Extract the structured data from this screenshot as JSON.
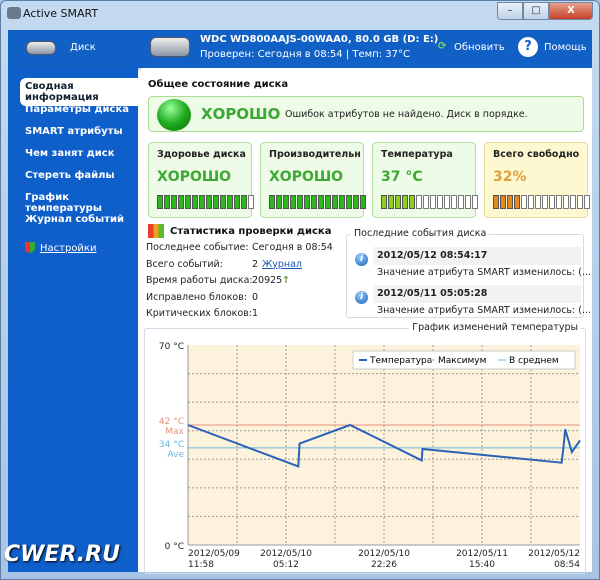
{
  "window": {
    "title": "Active SMART",
    "min": "–",
    "max": "□",
    "close": "X"
  },
  "header": {
    "disk_label": "Диск",
    "drive_name": "WDC WD800AAJS-00WAA0, 80.0 GB (D: E:)",
    "drive_status": "Проверен: Сегодня в 08:54 | Темп: 37°C",
    "refresh": "Обновить",
    "help": "Помощь",
    "help_glyph": "?"
  },
  "sidebar": {
    "items": [
      {
        "label": "Сводная информация",
        "active": true
      },
      {
        "label": "Параметры диска"
      },
      {
        "label": "SMART атрибуты"
      },
      {
        "label": "Чем занят диск"
      },
      {
        "label": "Стереть файлы"
      },
      {
        "label": "График температуры"
      },
      {
        "label": "Журнал событий"
      }
    ],
    "settings": "Настройки"
  },
  "main": {
    "title": "Общее состояние диска",
    "status": {
      "value": "ХОРОШО",
      "message": "Ошибок атрибутов не найдено. Диск в порядке."
    },
    "cards": [
      {
        "title": "Здоровье диска",
        "value": "ХОРОШО",
        "level": 0.93,
        "color": "#3aa832",
        "bar": "#2cb81c"
      },
      {
        "title": "Производительн",
        "value": "ХОРОШО",
        "level": 0.98,
        "color": "#3aa832",
        "bar": "#2cb81c"
      },
      {
        "title": "Температура",
        "value": "37 °C",
        "level": 0.37,
        "color": "#3aa832",
        "bar": "#8ccf1c"
      },
      {
        "title": "Всего свободно",
        "value": "32%",
        "level": 0.32,
        "color": "#e0a040",
        "bar": "#e08a20",
        "warn": true
      }
    ],
    "stats": {
      "title": "Статистика проверки диска",
      "rows": [
        {
          "label": "Последнее событие:",
          "value": "Сегодня в 08:54"
        },
        {
          "label": "Всего событий:",
          "value": "2",
          "link": "Журнал"
        },
        {
          "label": "Время работы диска:",
          "value": "20925",
          "arrow": "↑"
        },
        {
          "label": "Исправлено блоков:",
          "value": "0"
        },
        {
          "label": "Критических блоков:",
          "value": "1"
        }
      ]
    },
    "events": {
      "title": "Последние события диска",
      "icon_glyph": "i",
      "items": [
        {
          "time": "2012/05/12 08:54:17",
          "text": "Значение атрибута SMART изменилось: (..."
        },
        {
          "time": "2012/05/11 05:05:28",
          "text": "Значение атрибута SMART изменилось: (..."
        }
      ]
    }
  },
  "chart_data": {
    "type": "line",
    "title": "График изменений температуры",
    "ylim": [
      0,
      70
    ],
    "xlim": [
      "2012-05-09T11:58",
      "2012-05-12T08:54"
    ],
    "y_ticks": [
      {
        "label": "70 °C",
        "value": 70
      },
      {
        "label": "0 °C",
        "value": 0
      }
    ],
    "x_ticks": [
      {
        "l1": "2012/05/09",
        "l2": "11:58",
        "t": "2012-05-09T11:58"
      },
      {
        "l1": "2012/05/10",
        "l2": "05:12",
        "t": "2012-05-10T05:12"
      },
      {
        "l1": "2012/05/10",
        "l2": "22:26",
        "t": "2012-05-10T22:26"
      },
      {
        "l1": "2012/05/11",
        "l2": "15:40",
        "t": "2012-05-11T15:40"
      },
      {
        "l1": "2012/05/12",
        "l2": "08:54",
        "t": "2012-05-12T08:54"
      }
    ],
    "grid": true,
    "legend": "top-right",
    "max": {
      "value": 42,
      "label": "42 °C",
      "sub": "Max",
      "color": "#e8907a"
    },
    "avg": {
      "value": 34,
      "label": "34 °C",
      "sub": "Ave",
      "color": "#6ab8e0"
    },
    "series": [
      {
        "name": "Температура",
        "color": "#2a62b8",
        "points": [
          [
            "2012-05-09T11:58",
            42
          ],
          [
            "2012-05-10T07:22",
            27.5
          ],
          [
            "2012-05-10T07:35",
            35.5
          ],
          [
            "2012-05-10T16:28",
            42
          ],
          [
            "2012-05-11T05:04",
            29.6
          ],
          [
            "2012-05-11T05:12",
            33.6
          ],
          [
            "2012-05-12T05:40",
            28.8
          ],
          [
            "2012-05-12T05:58",
            33.7
          ],
          [
            "2012-05-12T06:18",
            40.5
          ],
          [
            "2012-05-12T07:28",
            32.5
          ],
          [
            "2012-05-12T08:54",
            36.6
          ]
        ]
      }
    ],
    "legend_entries": [
      "Температура",
      "Максимум",
      "В среднем"
    ],
    "background": "#fdf3dc"
  }
}
